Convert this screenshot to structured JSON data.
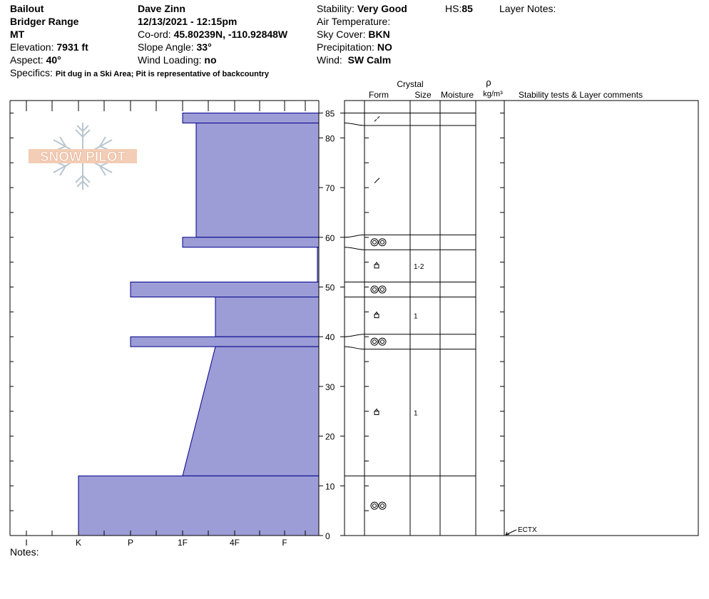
{
  "header": {
    "location": "Bailout",
    "range": "Bridger Range",
    "state": "MT",
    "elevation_label": "Elevation:",
    "elevation": "7931 ft",
    "aspect_label": "Aspect:",
    "aspect": "40°",
    "observer": "Dave Zinn",
    "datetime": "12/13/2021 - 12:15pm",
    "coord_label": "Co-ord:",
    "coord": "45.80239N, -110.92848W",
    "slope_label": "Slope Angle:",
    "slope": "33°",
    "wind_loading_label": "Wind Loading:",
    "wind_loading": "no",
    "stability_label": "Stability:",
    "stability": "Very Good",
    "hs_label": "HS:",
    "hs": "85",
    "layer_notes_label": "Layer Notes:",
    "air_temp_label": "Air Temperature:",
    "sky_label": "Sky Cover:",
    "sky": "BKN",
    "precip_label": "Precipitation:",
    "precip": "NO",
    "wind_label": "Wind:",
    "wind": "SW Calm",
    "specifics_label": "Specifics:",
    "specifics": "Pit dug in a Ski Area; Pit is representative of backcountry"
  },
  "notes_label": "Notes:",
  "logo_text": "SNOW PILOT",
  "columns": {
    "crystal": "Crystal",
    "form": "Form",
    "size": "Size",
    "moisture": "Moisture",
    "rho": "ρ",
    "density_unit": "kg/m³",
    "stability": "Stability tests & Layer comments"
  },
  "chart_data": {
    "type": "area",
    "title": "",
    "ylabel": "",
    "ylim": [
      0,
      88
    ],
    "yticks": [
      0,
      10,
      20,
      30,
      40,
      50,
      60,
      70,
      80,
      85
    ],
    "hardness_categories": [
      "I",
      "K",
      "P",
      "1F",
      "4F",
      "F"
    ],
    "fill_color": "#9c9cd6",
    "edge_color": "#00008b",
    "hardness_profile": [
      {
        "top": 85,
        "bottom": 83,
        "hardness_top": "1F",
        "hardness_bottom": "1F"
      },
      {
        "top": 83,
        "bottom": 60,
        "hardness_top": "4F-",
        "hardness_bottom": "4F-"
      },
      {
        "top": 60,
        "bottom": 58,
        "hardness_top": "1F",
        "hardness_bottom": "1F"
      },
      {
        "top": 58,
        "bottom": 51,
        "hardness_top": "F+",
        "hardness_bottom": "F+"
      },
      {
        "top": 51,
        "bottom": 48,
        "hardness_top": "P",
        "hardness_bottom": "P"
      },
      {
        "top": 48,
        "bottom": 40,
        "hardness_top": "1F+",
        "hardness_bottom": "1F+"
      },
      {
        "top": 40,
        "bottom": 38,
        "hardness_top": "P",
        "hardness_bottom": "P"
      },
      {
        "top": 38,
        "bottom": 12,
        "hardness_top": "1F+",
        "hardness_bottom": "1F"
      },
      {
        "top": 12,
        "bottom": 0,
        "hardness_top": "K",
        "hardness_bottom": "K"
      }
    ],
    "layers": [
      {
        "top": 85,
        "bottom": 82.5,
        "form": "decomposing",
        "size": ""
      },
      {
        "top": 82.5,
        "bottom": 60.5,
        "form": "decomposing",
        "size": ""
      },
      {
        "top": 60.5,
        "bottom": 57.5,
        "form": "melt-freeze",
        "size": ""
      },
      {
        "top": 57.5,
        "bottom": 51,
        "form": "faceted",
        "size": "1-2"
      },
      {
        "top": 51,
        "bottom": 48,
        "form": "melt-freeze",
        "size": ""
      },
      {
        "top": 48,
        "bottom": 40.5,
        "form": "faceted",
        "size": "1"
      },
      {
        "top": 40.5,
        "bottom": 37.5,
        "form": "melt-freeze",
        "size": ""
      },
      {
        "top": 37.5,
        "bottom": 12,
        "form": "faceted",
        "size": "1"
      },
      {
        "top": 12,
        "bottom": 0,
        "form": "melt-freeze",
        "size": ""
      }
    ],
    "stability_tests": [
      {
        "height": 0,
        "label": "ECTX"
      }
    ]
  }
}
